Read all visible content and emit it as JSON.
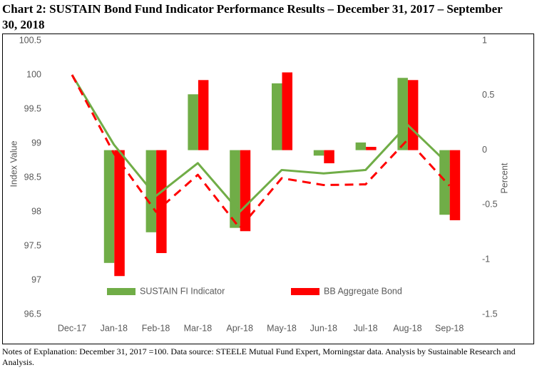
{
  "chart_data": {
    "type": "bar-line",
    "title": "Chart 2:  SUSTAIN Bond Fund Indicator Performance Results – December 31, 2017 – September 30, 2018",
    "note": "Notes of Explanation:  December 31, 2017 =100.  Data source:  STEELE Mutual Fund Expert, Morningstar data. Analysis by Sustainable Research and Analysis.",
    "ylabel": "Index Value",
    "y2label": "Percent",
    "categories": [
      "Dec-17",
      "Jan-18",
      "Feb-18",
      "Mar-18",
      "Apr-18",
      "May-18",
      "Jun-18",
      "Jul-18",
      "Aug-18",
      "Sep-18"
    ],
    "ylim": [
      96.5,
      100.5
    ],
    "yticks": [
      96.5,
      97,
      97.5,
      98,
      98.5,
      99,
      99.5,
      100,
      100.5
    ],
    "y2lim": [
      -1.5,
      1
    ],
    "y2ticks": [
      -1.5,
      -1,
      -0.5,
      0,
      0.5,
      1
    ],
    "grid": false,
    "series": [
      {
        "name": "SUSTAIN FI Indicator",
        "color": "#70ad47",
        "dashed": false,
        "values": [
          null,
          -1.03,
          -0.75,
          0.51,
          -0.71,
          0.61,
          -0.05,
          0.07,
          0.66,
          -0.59
        ],
        "index": [
          100,
          98.98,
          98.23,
          98.71,
          98.0,
          98.61,
          98.56,
          98.61,
          99.27,
          98.68
        ]
      },
      {
        "name": "BB Aggregate Bond",
        "color": "#ff0000",
        "dashed": true,
        "values": [
          null,
          -1.15,
          -0.94,
          0.64,
          -0.74,
          0.71,
          -0.12,
          0.03,
          0.64,
          -0.64
        ],
        "index": [
          100,
          98.85,
          98.0,
          98.54,
          97.76,
          98.49,
          98.39,
          98.4,
          99.05,
          98.38
        ]
      }
    ]
  }
}
